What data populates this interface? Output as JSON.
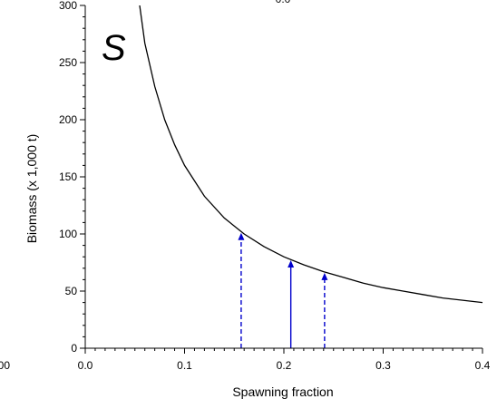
{
  "chart_data": {
    "type": "line",
    "panel_label": "S",
    "xlabel": "Spawning fraction",
    "ylabel": "Biomass (x 1,000 t)",
    "xlim": [
      0.0,
      0.4
    ],
    "ylim": [
      0,
      300
    ],
    "x_ticks": [
      {
        "value": 0.0,
        "label": "0.0"
      },
      {
        "value": 0.1,
        "label": "0.1"
      },
      {
        "value": 0.2,
        "label": "0.2"
      },
      {
        "value": 0.3,
        "label": "0.3"
      },
      {
        "value": 0.4,
        "label": "0.4"
      }
    ],
    "x_minor_step": 0.01,
    "y_ticks": [
      {
        "value": 0,
        "label": "0"
      },
      {
        "value": 50,
        "label": "50"
      },
      {
        "value": 100,
        "label": "100"
      },
      {
        "value": 150,
        "label": "150"
      },
      {
        "value": 200,
        "label": "200"
      },
      {
        "value": 250,
        "label": "250"
      },
      {
        "value": 300,
        "label": "300"
      }
    ],
    "y_minor_step": 10,
    "grid": false,
    "legend": "none",
    "series": [
      {
        "style": "solid",
        "color": "#000000",
        "x": [
          0.052,
          0.06,
          0.07,
          0.08,
          0.09,
          0.1,
          0.12,
          0.14,
          0.16,
          0.18,
          0.2,
          0.22,
          0.24,
          0.26,
          0.28,
          0.3,
          0.32,
          0.34,
          0.36,
          0.38,
          0.4
        ],
        "y": [
          318,
          267,
          229,
          200,
          178,
          160,
          133,
          114,
          100,
          89,
          80,
          73,
          67,
          62,
          57,
          53,
          50,
          47,
          44,
          42,
          40
        ]
      }
    ],
    "markers": [
      {
        "x": 0.157,
        "y": 101,
        "style": "dashed",
        "color": "#0000cc"
      },
      {
        "x": 0.207,
        "y": 77,
        "style": "solid",
        "color": "#0000cc"
      },
      {
        "x": 0.241,
        "y": 66,
        "style": "dashed",
        "color": "#0000cc"
      }
    ],
    "clipped_labels": [
      {
        "text": "00",
        "side": "left",
        "at_axis": "x-origin"
      },
      {
        "text": "0.0",
        "side": "top-center"
      }
    ]
  }
}
